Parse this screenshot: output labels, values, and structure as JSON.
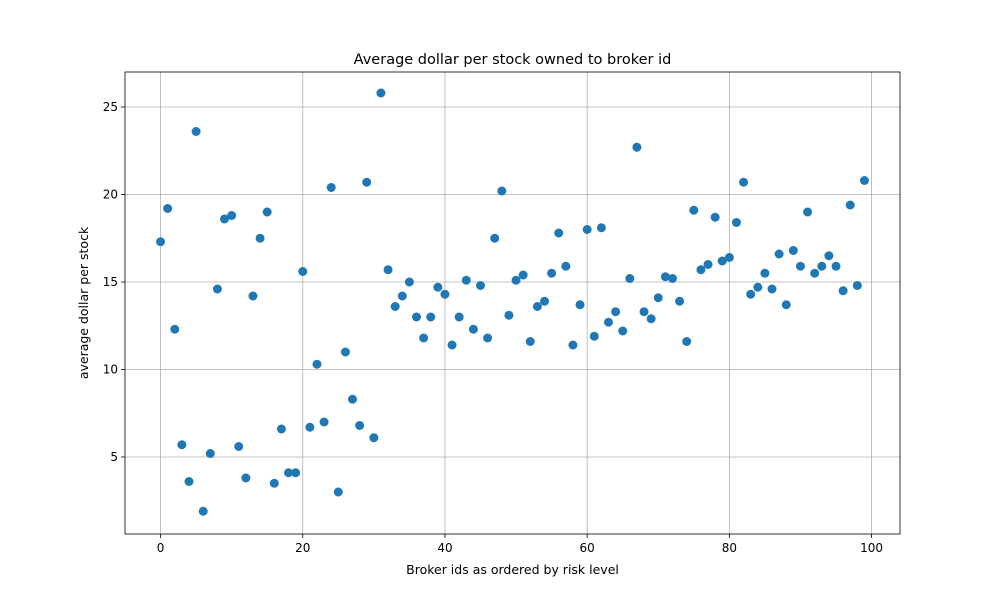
{
  "chart_data": {
    "type": "scatter",
    "title": "Average dollar per stock owned to broker id",
    "xlabel": "Broker ids as ordered by risk level",
    "ylabel": "average dollar per stock",
    "xlim": [
      -5,
      104
    ],
    "ylim": [
      0.6,
      27.0
    ],
    "xticks": [
      0,
      20,
      40,
      60,
      80,
      100
    ],
    "yticks": [
      5,
      10,
      15,
      20,
      25
    ],
    "grid": true,
    "marker_color": "#1f77b4",
    "series": [
      {
        "x": [
          0,
          1,
          2,
          3,
          4,
          5,
          6,
          7,
          8,
          9,
          10,
          11,
          12,
          13,
          14,
          15,
          16,
          17,
          18,
          19,
          20,
          21,
          22,
          23,
          24,
          25,
          26,
          27,
          28,
          29,
          30,
          31,
          32,
          33,
          34,
          35,
          36,
          37,
          38,
          39,
          40,
          41,
          42,
          43,
          44,
          45,
          46,
          47,
          48,
          49,
          50,
          51,
          52,
          53,
          54,
          55,
          56,
          57,
          58,
          59,
          60,
          61,
          62,
          63,
          64,
          65,
          66,
          67,
          68,
          69,
          70,
          71,
          72,
          73,
          74,
          75,
          76,
          77,
          78,
          79,
          80,
          81,
          82,
          83,
          84,
          85,
          86,
          87,
          88,
          89,
          90,
          91,
          92,
          93,
          94,
          95,
          96,
          97,
          98,
          99
        ],
        "y": [
          17.3,
          19.2,
          12.3,
          5.7,
          3.6,
          23.6,
          1.9,
          5.2,
          14.6,
          18.6,
          18.8,
          5.6,
          3.8,
          14.2,
          17.5,
          19.0,
          3.5,
          6.6,
          4.1,
          4.1,
          15.6,
          6.7,
          10.3,
          7.0,
          20.4,
          3.0,
          11.0,
          8.3,
          6.8,
          20.7,
          6.1,
          25.8,
          15.7,
          13.6,
          14.2,
          15.0,
          13.0,
          11.8,
          13.0,
          14.7,
          14.3,
          11.4,
          13.0,
          15.1,
          12.3,
          14.8,
          11.8,
          17.5,
          20.2,
          13.1,
          15.1,
          15.4,
          11.6,
          13.6,
          13.9,
          15.5,
          17.8,
          15.9,
          11.4,
          13.7,
          18.0,
          11.9,
          18.1,
          12.7,
          13.3,
          12.2,
          15.2,
          22.7,
          13.3,
          12.9,
          14.1,
          15.3,
          15.2,
          13.9,
          11.6,
          19.1,
          15.7,
          16.0,
          18.7,
          16.2,
          16.4,
          18.4,
          20.7,
          14.3,
          14.7,
          15.5,
          14.6,
          16.6,
          13.7,
          16.8,
          15.9,
          19.0,
          15.5,
          15.9,
          16.5,
          15.9,
          14.5,
          19.4,
          14.8,
          20.8
        ]
      }
    ]
  }
}
